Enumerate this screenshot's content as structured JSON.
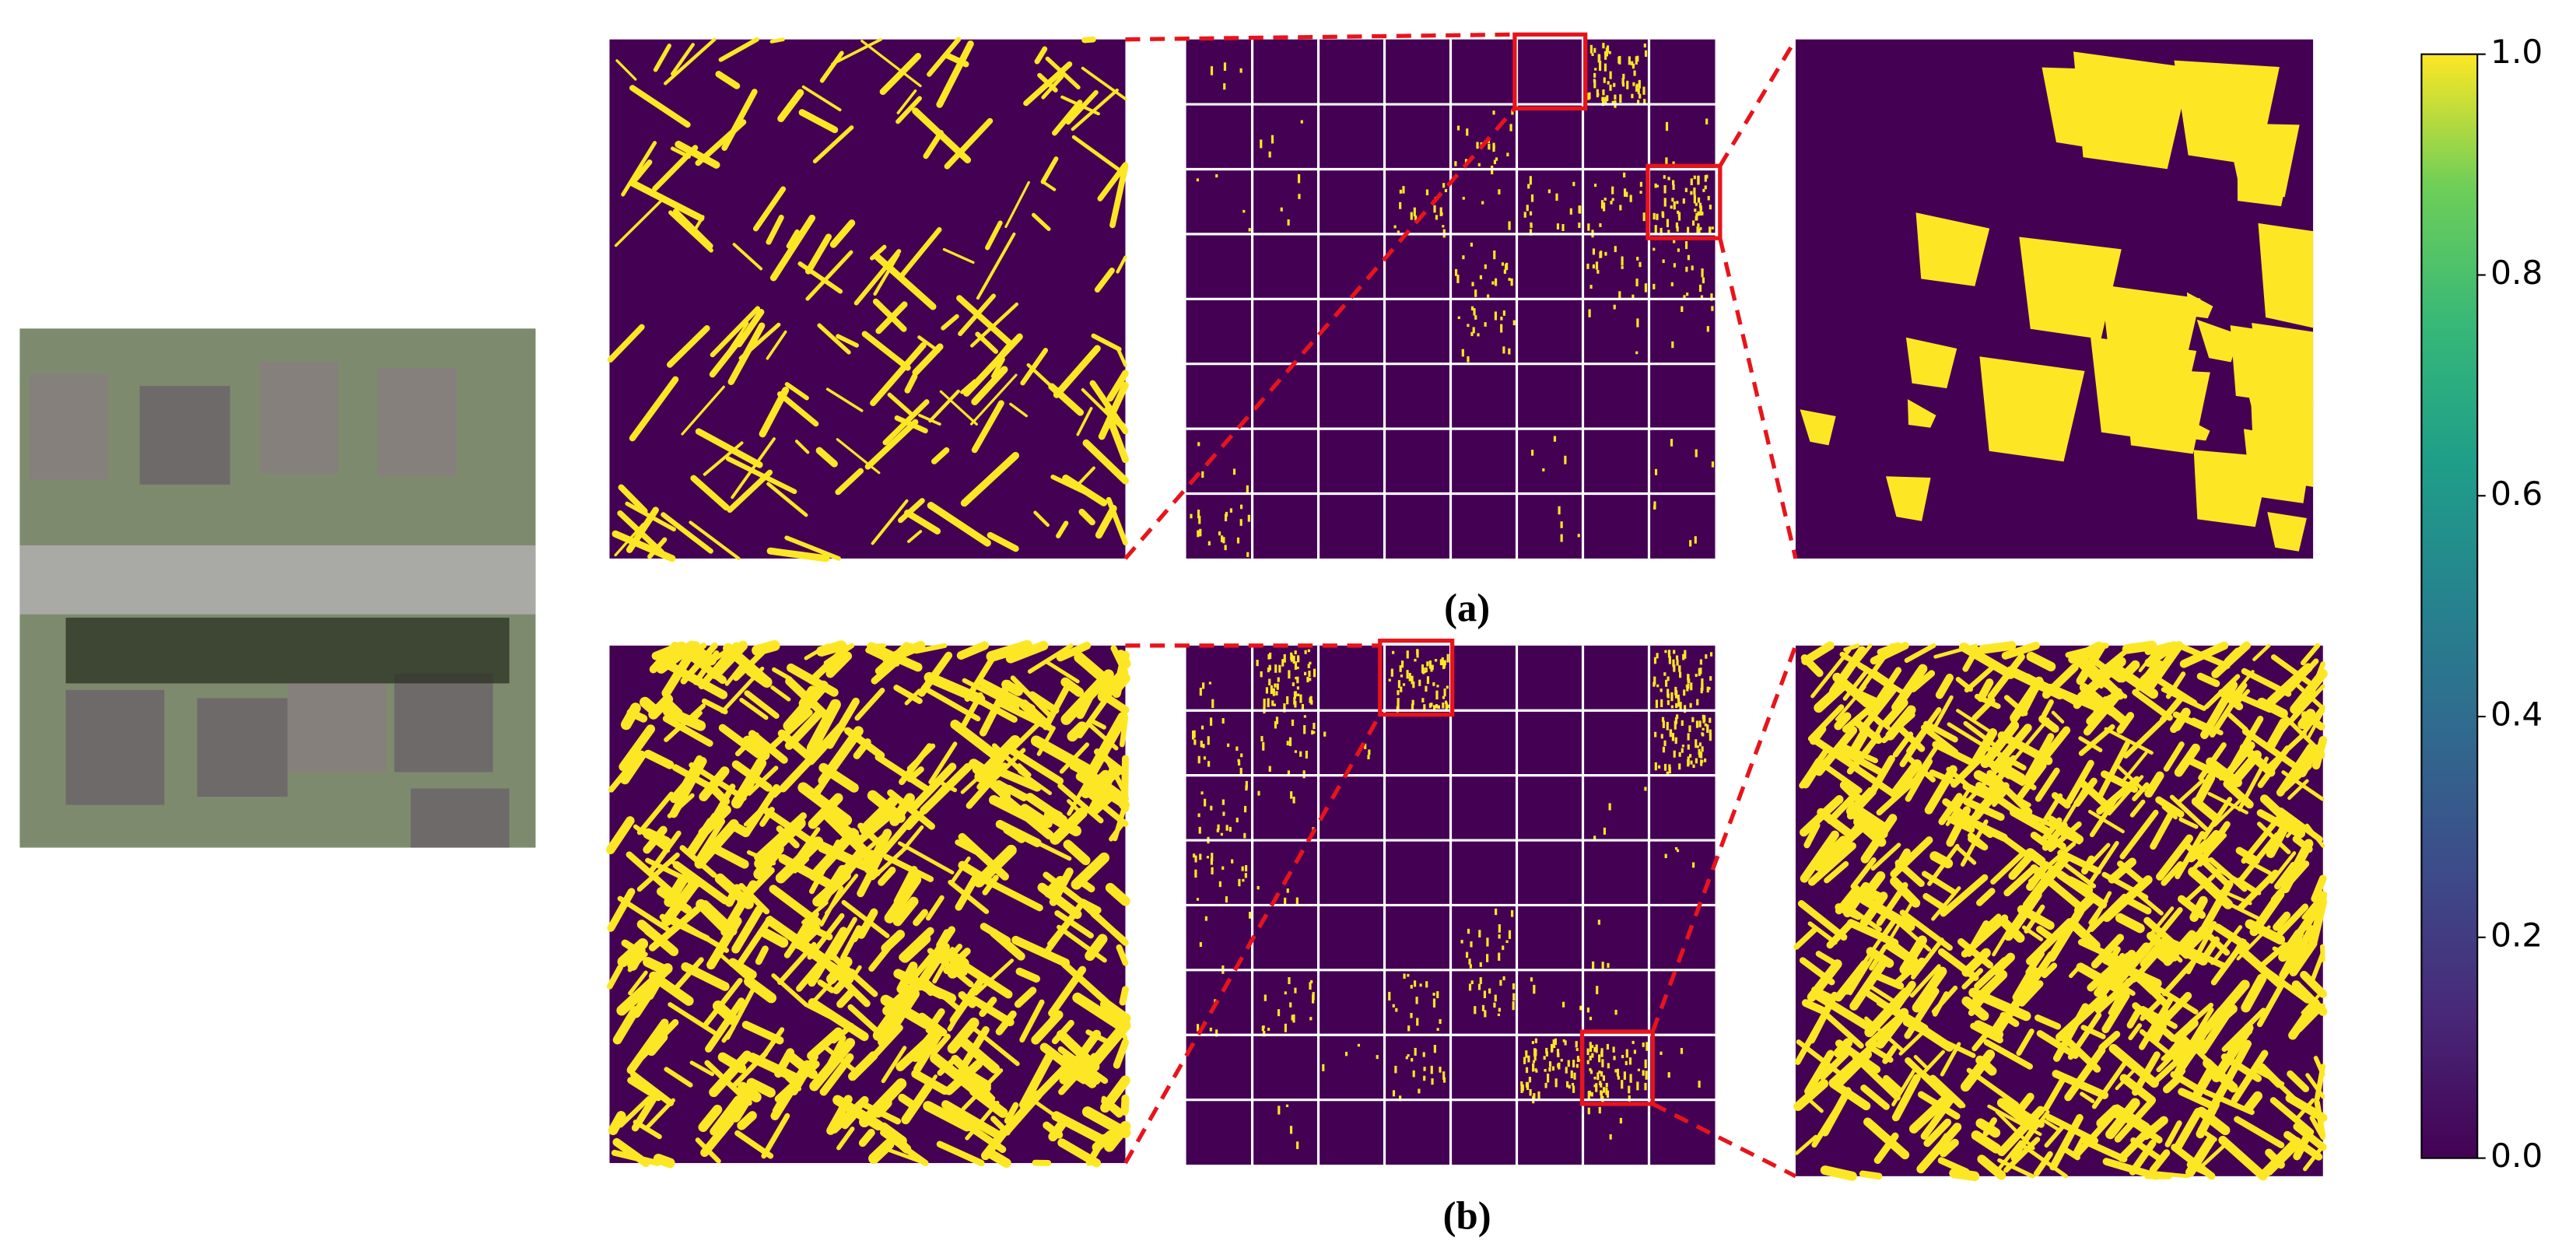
{
  "chart_data": {
    "type": "heatmap",
    "panels": [
      {
        "label": "(a)"
      },
      {
        "label": "(b)"
      }
    ],
    "colormap": "viridis",
    "ylim": [
      0,
      1
    ],
    "yticks": [
      {
        "value": 0,
        "label": "0.0"
      },
      {
        "value": 0.2,
        "label": "0.2"
      },
      {
        "value": 0.4,
        "label": "0.4"
      },
      {
        "value": 0.6,
        "label": "0.6"
      },
      {
        "value": 0.8,
        "label": "0.8"
      },
      {
        "value": 1,
        "label": "1.0"
      }
    ]
  }
}
